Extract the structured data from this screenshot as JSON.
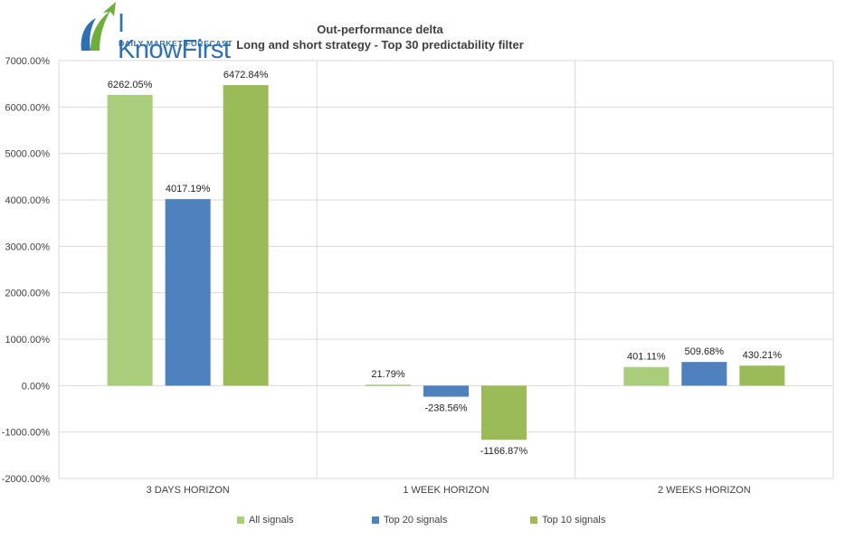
{
  "logo": {
    "brand": "I KnowFirst",
    "tagline": "Daily Market Forecast"
  },
  "colors": {
    "all": "#a9cd7b",
    "top20": "#4e81bd",
    "top10": "#9bbb59",
    "grid": "#d9d9d9",
    "text": "#404040"
  },
  "chart_data": {
    "type": "bar",
    "title": "Out-performance delta",
    "subtitle": "Long and short strategy - Top 30 predictability filter",
    "categories": [
      "3 DAYS HORIZON",
      "1 WEEK HORIZON",
      "2 WEEKS HORIZON"
    ],
    "series": [
      {
        "name": "All signals",
        "values": [
          6262.05,
          21.79,
          401.11
        ],
        "labels": [
          "6262.05%",
          "21.79%",
          "401.11%"
        ]
      },
      {
        "name": "Top 20 signals",
        "values": [
          4017.19,
          -238.56,
          509.68
        ],
        "labels": [
          "4017.19%",
          "-238.56%",
          "509.68%"
        ]
      },
      {
        "name": "Top 10 signals",
        "values": [
          6472.84,
          -1166.87,
          430.21
        ],
        "labels": [
          "6472.84%",
          "-1166.87%",
          "430.21%"
        ]
      }
    ],
    "ylim": [
      -2000,
      7000
    ],
    "yticks": [
      7000,
      6000,
      5000,
      4000,
      3000,
      2000,
      1000,
      0,
      -1000,
      -2000
    ],
    "ytick_labels": [
      "7000.00%",
      "6000.00%",
      "5000.00%",
      "4000.00%",
      "3000.00%",
      "2000.00%",
      "1000.00%",
      "0.00%",
      "-1000.00%",
      "-2000.00%"
    ],
    "xlabel": "",
    "ylabel": "",
    "grid": true,
    "legend_position": "bottom"
  }
}
